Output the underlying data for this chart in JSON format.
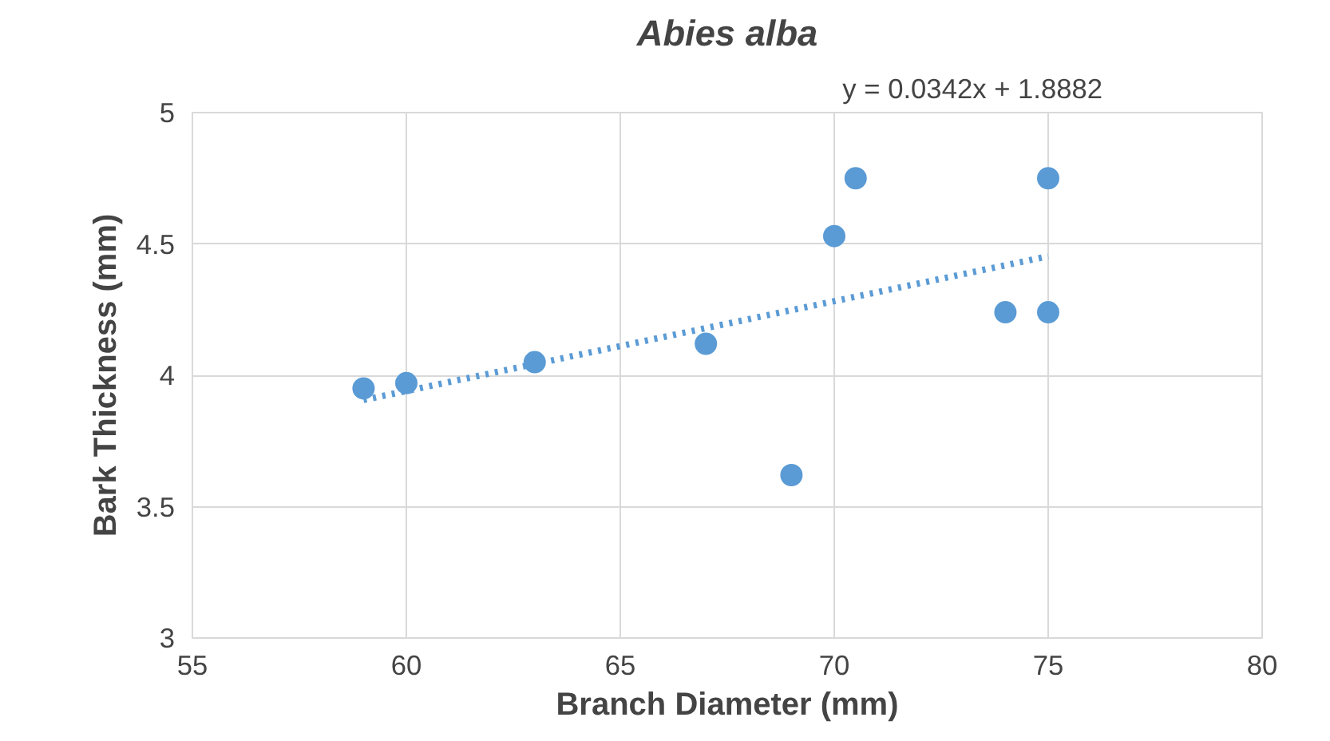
{
  "chart_data": {
    "type": "scatter",
    "title": "Abies alba",
    "xlabel": "Branch Diameter (mm)",
    "ylabel": "Bark Thickness (mm)",
    "annotations": [
      "y = 0.0342x + 1.8882"
    ],
    "x": [
      59,
      60,
      63,
      67,
      69,
      70,
      70.5,
      74,
      75,
      75
    ],
    "series": [
      {
        "type": "scatter",
        "color": "#5b9bd5",
        "marker": "circle",
        "values": [
          3.95,
          3.97,
          4.05,
          4.12,
          3.62,
          4.53,
          4.75,
          4.24,
          4.75,
          4.24
        ]
      },
      {
        "type": "line",
        "color": "#5b9bd5",
        "line_style": "dotted",
        "x": [
          59,
          75
        ],
        "values": [
          3.906,
          4.453
        ]
      }
    ],
    "xlim": [
      55,
      80
    ],
    "xticks": [
      55,
      60,
      65,
      70,
      75,
      80
    ],
    "ylim": [
      3,
      5
    ],
    "yticks": [
      3,
      3.5,
      4,
      4.5,
      5
    ],
    "grid": true
  }
}
